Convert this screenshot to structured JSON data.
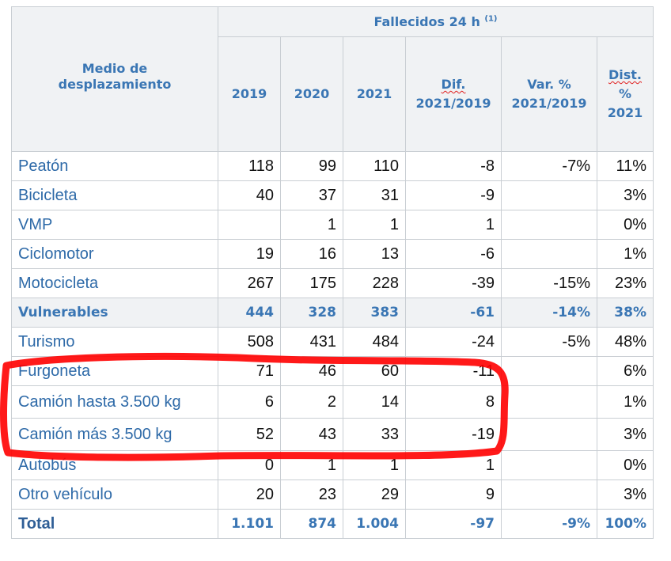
{
  "header": {
    "group_title": "Fallecidos 24 h",
    "group_note": "(1)",
    "row_header_line1": "Medio de",
    "row_header_line2": "desplazamiento",
    "col_2019": "2019",
    "col_2020": "2020",
    "col_2021": "2021",
    "col_dif_line1": "Dif.",
    "col_dif_line2": "2021/2019",
    "col_var_line1": "Var. %",
    "col_var_line2": "2021/2019",
    "col_dist_line1": "Dist.",
    "col_dist_line2": "%",
    "col_dist_line3": "2021"
  },
  "rows": [
    {
      "label": "Peatón",
      "y2019": "118",
      "y2020": "99",
      "y2021": "110",
      "dif": "-8",
      "var": "-7%",
      "dist": "11%"
    },
    {
      "label": "Bicicleta",
      "y2019": "40",
      "y2020": "37",
      "y2021": "31",
      "dif": "-9",
      "var": "",
      "dist": "3%"
    },
    {
      "label": "VMP",
      "y2019": "",
      "y2020": "1",
      "y2021": "1",
      "dif": "1",
      "var": "",
      "dist": "0%"
    },
    {
      "label": "Ciclomotor",
      "y2019": "19",
      "y2020": "16",
      "y2021": "13",
      "dif": "-6",
      "var": "",
      "dist": "1%"
    },
    {
      "label": "Motocicleta",
      "y2019": "267",
      "y2020": "175",
      "y2021": "228",
      "dif": "-39",
      "var": "-15%",
      "dist": "23%"
    },
    {
      "label": "Vulnerables",
      "y2019": "444",
      "y2020": "328",
      "y2021": "383",
      "dif": "-61",
      "var": "-14%",
      "dist": "38%"
    },
    {
      "label": "Turismo",
      "y2019": "508",
      "y2020": "431",
      "y2021": "484",
      "dif": "-24",
      "var": "-5%",
      "dist": "48%"
    },
    {
      "label": "Furgoneta",
      "y2019": "71",
      "y2020": "46",
      "y2021": "60",
      "dif": "-11",
      "var": "",
      "dist": "6%"
    },
    {
      "label": "Camión hasta 3.500 kg",
      "y2019": "6",
      "y2020": "2",
      "y2021": "14",
      "dif": "8",
      "var": "",
      "dist": "1%"
    },
    {
      "label": "Camión más 3.500 kg",
      "y2019": "52",
      "y2020": "43",
      "y2021": "33",
      "dif": "-19",
      "var": "",
      "dist": "3%"
    },
    {
      "label": "Autobús",
      "y2019": "0",
      "y2020": "1",
      "y2021": "1",
      "dif": "1",
      "var": "",
      "dist": "0%"
    },
    {
      "label": "Otro vehículo",
      "y2019": "20",
      "y2020": "23",
      "y2021": "29",
      "dif": "9",
      "var": "",
      "dist": "3%"
    },
    {
      "label": "Total",
      "y2019": "1.101",
      "y2020": "874",
      "y2021": "1.004",
      "dif": "-97",
      "var": "-9%",
      "dist": "100%"
    }
  ],
  "annotation": {
    "color": "#ff0000"
  }
}
